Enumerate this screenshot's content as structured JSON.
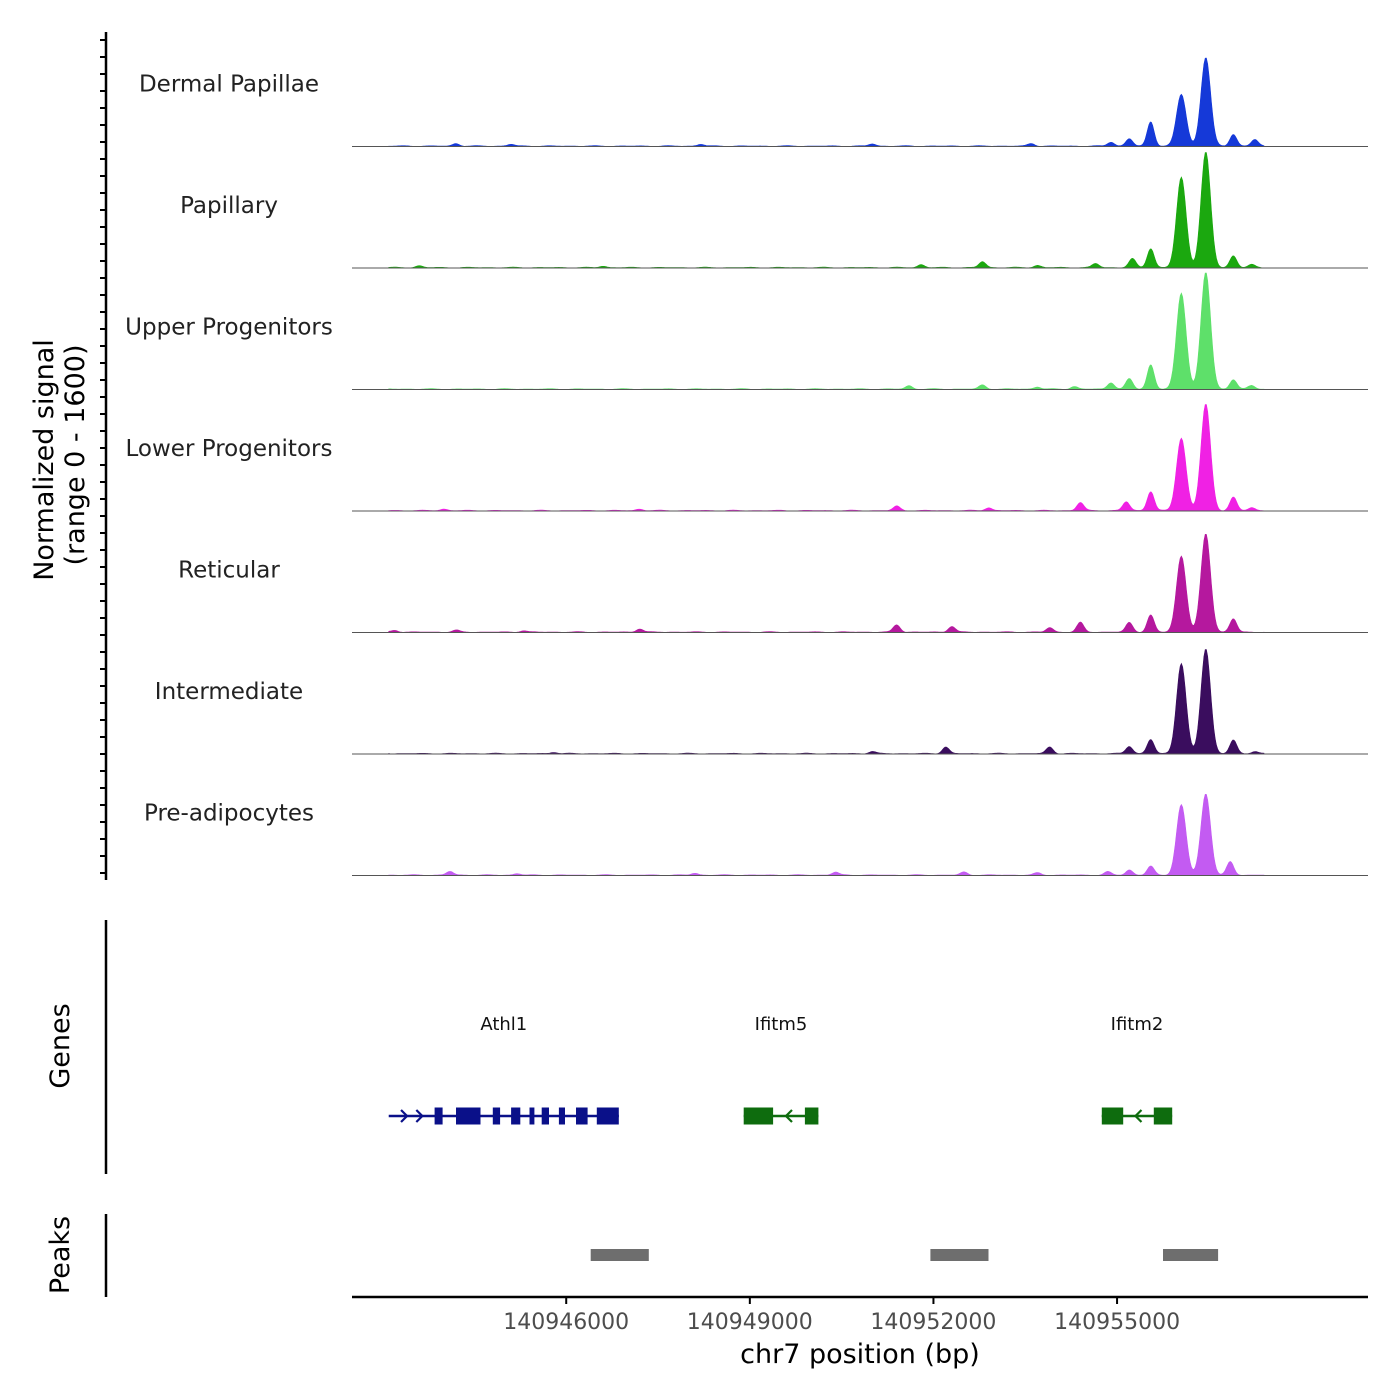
{
  "chart_data": {
    "type": "area",
    "title": "",
    "ylabel_line1": "Normalized signal",
    "ylabel_line2": "(range 0 - 1600)",
    "xlabel": "chr7 position (bp)",
    "chromosome": "chr7",
    "ylim": [
      0,
      1600
    ],
    "xlim": [
      140942500,
      140959100
    ],
    "x_ticks": [
      140946000,
      140949000,
      140952000,
      140955000
    ],
    "x_tick_labels": [
      "140946000",
      "140949000",
      "140952000",
      "140955000"
    ],
    "tracks": [
      {
        "name": "Dermal Papillae",
        "color": "#1539D8",
        "peaks": [
          {
            "pos": 140955550,
            "h": 330
          },
          {
            "pos": 140956050,
            "h": 700
          },
          {
            "pos": 140956450,
            "h": 1200
          },
          {
            "pos": 140956900,
            "h": 160
          },
          {
            "pos": 140955200,
            "h": 100
          },
          {
            "pos": 140954900,
            "h": 55
          },
          {
            "pos": 140957250,
            "h": 90
          },
          {
            "pos": 140944200,
            "h": 35
          },
          {
            "pos": 140945100,
            "h": 25
          },
          {
            "pos": 140948200,
            "h": 25
          },
          {
            "pos": 140951000,
            "h": 30
          },
          {
            "pos": 140953600,
            "h": 35
          }
        ]
      },
      {
        "name": "Papillary",
        "color": "#1BA80F",
        "peaks": [
          {
            "pos": 140955550,
            "h": 260
          },
          {
            "pos": 140956050,
            "h": 1220
          },
          {
            "pos": 140956450,
            "h": 1560
          },
          {
            "pos": 140956900,
            "h": 160
          },
          {
            "pos": 140955250,
            "h": 120
          },
          {
            "pos": 140954650,
            "h": 55
          },
          {
            "pos": 140957200,
            "h": 40
          },
          {
            "pos": 140943600,
            "h": 25
          },
          {
            "pos": 140946600,
            "h": 20
          },
          {
            "pos": 140951800,
            "h": 40
          },
          {
            "pos": 140952800,
            "h": 80
          },
          {
            "pos": 140953700,
            "h": 30
          }
        ]
      },
      {
        "name": "Upper Progenitors",
        "color": "#5EE06A",
        "peaks": [
          {
            "pos": 140955550,
            "h": 330
          },
          {
            "pos": 140956050,
            "h": 1300
          },
          {
            "pos": 140956450,
            "h": 1580
          },
          {
            "pos": 140956900,
            "h": 130
          },
          {
            "pos": 140955200,
            "h": 140
          },
          {
            "pos": 140954900,
            "h": 90
          },
          {
            "pos": 140957200,
            "h": 50
          },
          {
            "pos": 140951600,
            "h": 45
          },
          {
            "pos": 140952800,
            "h": 55
          },
          {
            "pos": 140953700,
            "h": 30
          },
          {
            "pos": 140954300,
            "h": 35
          }
        ]
      },
      {
        "name": "Lower Progenitors",
        "color": "#F021E4",
        "peaks": [
          {
            "pos": 140955550,
            "h": 260
          },
          {
            "pos": 140956050,
            "h": 980
          },
          {
            "pos": 140956450,
            "h": 1440
          },
          {
            "pos": 140956900,
            "h": 180
          },
          {
            "pos": 140955150,
            "h": 120
          },
          {
            "pos": 140954400,
            "h": 110
          },
          {
            "pos": 140951400,
            "h": 60
          },
          {
            "pos": 140952900,
            "h": 40
          },
          {
            "pos": 140957200,
            "h": 40
          },
          {
            "pos": 140944000,
            "h": 20
          },
          {
            "pos": 140947200,
            "h": 20
          }
        ]
      },
      {
        "name": "Reticular",
        "color": "#B5189E",
        "peaks": [
          {
            "pos": 140955550,
            "h": 230
          },
          {
            "pos": 140956050,
            "h": 1030
          },
          {
            "pos": 140956450,
            "h": 1330
          },
          {
            "pos": 140956900,
            "h": 180
          },
          {
            "pos": 140955200,
            "h": 130
          },
          {
            "pos": 140954400,
            "h": 130
          },
          {
            "pos": 140951400,
            "h": 100
          },
          {
            "pos": 140952300,
            "h": 80
          },
          {
            "pos": 140953900,
            "h": 60
          },
          {
            "pos": 140947200,
            "h": 45
          },
          {
            "pos": 140943200,
            "h": 25
          },
          {
            "pos": 140944200,
            "h": 25
          },
          {
            "pos": 140945300,
            "h": 20
          }
        ]
      },
      {
        "name": "Intermediate",
        "color": "#3A0D5E",
        "peaks": [
          {
            "pos": 140955550,
            "h": 190
          },
          {
            "pos": 140956050,
            "h": 1220
          },
          {
            "pos": 140956450,
            "h": 1420
          },
          {
            "pos": 140956900,
            "h": 180
          },
          {
            "pos": 140955200,
            "h": 100
          },
          {
            "pos": 140953900,
            "h": 90
          },
          {
            "pos": 140952200,
            "h": 90
          },
          {
            "pos": 140951000,
            "h": 30
          },
          {
            "pos": 140943000,
            "h": 20
          },
          {
            "pos": 140945800,
            "h": 20
          },
          {
            "pos": 140957250,
            "h": 30
          }
        ]
      },
      {
        "name": "Pre-adipocytes",
        "color": "#C35BF2",
        "peaks": [
          {
            "pos": 140955550,
            "h": 120
          },
          {
            "pos": 140956050,
            "h": 950
          },
          {
            "pos": 140956450,
            "h": 1100
          },
          {
            "pos": 140956850,
            "h": 180
          },
          {
            "pos": 140955200,
            "h": 70
          },
          {
            "pos": 140954850,
            "h": 45
          },
          {
            "pos": 140944100,
            "h": 50
          },
          {
            "pos": 140945200,
            "h": 20
          },
          {
            "pos": 140948100,
            "h": 25
          },
          {
            "pos": 140950400,
            "h": 40
          },
          {
            "pos": 140952500,
            "h": 40
          },
          {
            "pos": 140953700,
            "h": 30
          }
        ]
      }
    ],
    "genes_panel_label": "Genes",
    "genes": [
      {
        "name": "Athl1",
        "color": "#0A1089",
        "strand": "+",
        "start": 140943100,
        "end": 140946860,
        "exons": [
          [
            140943850,
            140943980
          ],
          [
            140944200,
            140944600
          ],
          [
            140944800,
            140944920
          ],
          [
            140945100,
            140945250
          ],
          [
            140945400,
            140945480
          ],
          [
            140945600,
            140945720
          ],
          [
            140945880,
            140945980
          ],
          [
            140946160,
            140946350
          ],
          [
            140946500,
            140946860
          ]
        ]
      },
      {
        "name": "Ifitm5",
        "color": "#0E6C0E",
        "strand": "-",
        "start": 140948900,
        "end": 140950120,
        "exons": [
          [
            140948900,
            140949380
          ],
          [
            140949900,
            140950120
          ]
        ]
      },
      {
        "name": "Ifitm2",
        "color": "#0E6C0E",
        "strand": "-",
        "start": 140954750,
        "end": 140955900,
        "exons": [
          [
            140954750,
            140955100
          ],
          [
            140955600,
            140955900
          ]
        ]
      }
    ],
    "peaks_panel_label": "Peaks",
    "peak_regions": [
      [
        140946400,
        140947350
      ],
      [
        140951950,
        140952900
      ],
      [
        140955750,
        140956650
      ]
    ],
    "peak_color": "#6E6E6E"
  }
}
